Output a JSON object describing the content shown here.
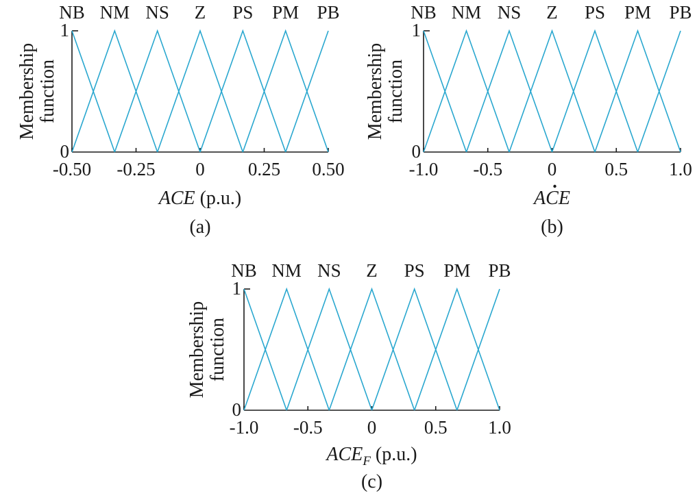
{
  "colors": {
    "membership_line": "#29a7cf",
    "axis": "#1a1a1a"
  },
  "chart_data": [
    {
      "type": "line",
      "id": "a",
      "caption": "(a)",
      "xlabel": {
        "var": "ACE",
        "sub": "",
        "dot": false,
        "unit": " (p.u.)"
      },
      "ylabel_lines": [
        "Membership",
        "function"
      ],
      "xlim": [
        -0.5,
        0.5
      ],
      "ylim": [
        0,
        1
      ],
      "xticks": [
        -0.5,
        -0.25,
        0,
        0.25,
        0.5
      ],
      "xtick_labels": [
        "-0.50",
        "-0.25",
        "0",
        "0.25",
        "0.50"
      ],
      "yticks": [
        0,
        1
      ],
      "ytick_labels": [
        "0",
        "1"
      ],
      "grid": false,
      "series": [
        {
          "name": "NB",
          "x": [
            -0.5,
            -0.3333
          ],
          "y": [
            1,
            0
          ]
        },
        {
          "name": "NM",
          "x": [
            -0.5,
            -0.3333,
            -0.1667
          ],
          "y": [
            0,
            1,
            0
          ]
        },
        {
          "name": "NS",
          "x": [
            -0.3333,
            -0.1667,
            0
          ],
          "y": [
            0,
            1,
            0
          ]
        },
        {
          "name": "Z",
          "x": [
            -0.1667,
            0,
            0.1667
          ],
          "y": [
            0,
            1,
            0
          ]
        },
        {
          "name": "PS",
          "x": [
            0,
            0.1667,
            0.3333
          ],
          "y": [
            0,
            1,
            0
          ]
        },
        {
          "name": "PM",
          "x": [
            0.1667,
            0.3333,
            0.5
          ],
          "y": [
            0,
            1,
            0
          ]
        },
        {
          "name": "PB",
          "x": [
            0.3333,
            0.5
          ],
          "y": [
            0,
            1
          ]
        }
      ]
    },
    {
      "type": "line",
      "id": "b",
      "caption": "(b)",
      "xlabel": {
        "var": "ACE",
        "sub": "",
        "dot": true,
        "unit": ""
      },
      "ylabel_lines": [
        "Membership",
        "function"
      ],
      "xlim": [
        -1,
        1
      ],
      "ylim": [
        0,
        1
      ],
      "xticks": [
        -1,
        -0.5,
        0,
        0.5,
        1
      ],
      "xtick_labels": [
        "-1.0",
        "-0.5",
        "0",
        "0.5",
        "1.0"
      ],
      "yticks": [
        0,
        1
      ],
      "ytick_labels": [
        "0",
        "1"
      ],
      "grid": false,
      "series": [
        {
          "name": "NB",
          "x": [
            -1,
            -0.6667
          ],
          "y": [
            1,
            0
          ]
        },
        {
          "name": "NM",
          "x": [
            -1,
            -0.6667,
            -0.3333
          ],
          "y": [
            0,
            1,
            0
          ]
        },
        {
          "name": "NS",
          "x": [
            -0.6667,
            -0.3333,
            0
          ],
          "y": [
            0,
            1,
            0
          ]
        },
        {
          "name": "Z",
          "x": [
            -0.3333,
            0,
            0.3333
          ],
          "y": [
            0,
            1,
            0
          ]
        },
        {
          "name": "PS",
          "x": [
            0,
            0.3333,
            0.6667
          ],
          "y": [
            0,
            1,
            0
          ]
        },
        {
          "name": "PM",
          "x": [
            0.3333,
            0.6667,
            1
          ],
          "y": [
            0,
            1,
            0
          ]
        },
        {
          "name": "PB",
          "x": [
            0.6667,
            1
          ],
          "y": [
            0,
            1
          ]
        }
      ]
    },
    {
      "type": "line",
      "id": "c",
      "caption": "(c)",
      "xlabel": {
        "var": "ACE",
        "sub": "F",
        "dot": false,
        "unit": " (p.u.)"
      },
      "ylabel_lines": [
        "Membership",
        "function"
      ],
      "xlim": [
        -1,
        1
      ],
      "ylim": [
        0,
        1
      ],
      "xticks": [
        -1,
        -0.5,
        0,
        0.5,
        1
      ],
      "xtick_labels": [
        "-1.0",
        "-0.5",
        "0",
        "0.5",
        "1.0"
      ],
      "yticks": [
        0,
        1
      ],
      "ytick_labels": [
        "0",
        "1"
      ],
      "grid": false,
      "series": [
        {
          "name": "NB",
          "x": [
            -1,
            -0.6667
          ],
          "y": [
            1,
            0
          ]
        },
        {
          "name": "NM",
          "x": [
            -1,
            -0.6667,
            -0.3333
          ],
          "y": [
            0,
            1,
            0
          ]
        },
        {
          "name": "NS",
          "x": [
            -0.6667,
            -0.3333,
            0
          ],
          "y": [
            0,
            1,
            0
          ]
        },
        {
          "name": "Z",
          "x": [
            -0.3333,
            0,
            0.3333
          ],
          "y": [
            0,
            1,
            0
          ]
        },
        {
          "name": "PS",
          "x": [
            0,
            0.3333,
            0.6667
          ],
          "y": [
            0,
            1,
            0
          ]
        },
        {
          "name": "PM",
          "x": [
            0.3333,
            0.6667,
            1
          ],
          "y": [
            0,
            1,
            0
          ]
        },
        {
          "name": "PB",
          "x": [
            0.6667,
            1
          ],
          "y": [
            0,
            1
          ]
        }
      ]
    }
  ]
}
